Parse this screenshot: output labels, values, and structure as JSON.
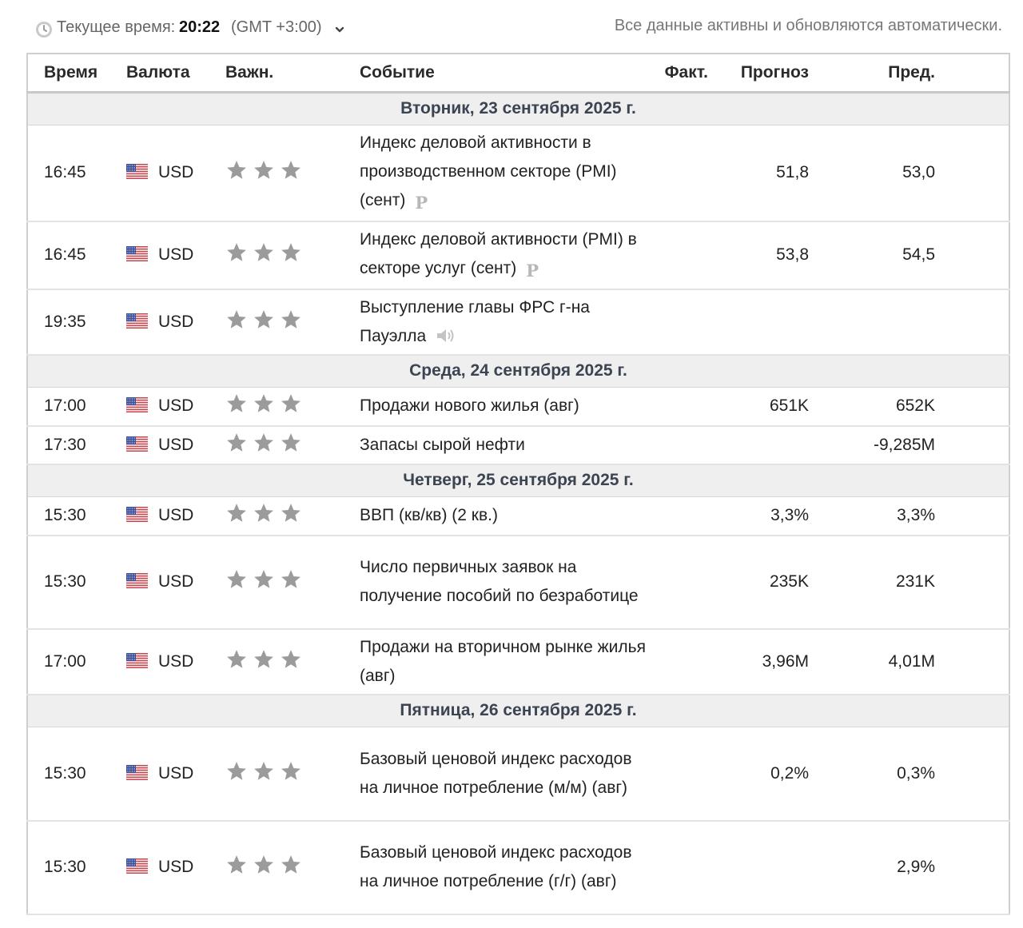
{
  "header": {
    "current_time_label": "Текущее время:",
    "current_time": "20:22",
    "timezone": "(GMT +3:00)",
    "auto_update_note": "Все данные активны и обновляются автоматически."
  },
  "table": {
    "columns": {
      "time": "Время",
      "currency": "Валюта",
      "importance": "Важн.",
      "event": "Событие",
      "actual": "Факт.",
      "forecast": "Прогноз",
      "previous": "Пред."
    },
    "days": [
      {
        "date": "Вторник, 23 сентября 2025 г.",
        "events": [
          {
            "time": "16:45",
            "currency": "USD",
            "stars": 3,
            "name": "Индекс деловой активности в производственном секторе (PMI) (сент)",
            "icon": "preliminary-icon",
            "icon_text": "P",
            "actual": "",
            "forecast": "51,8",
            "previous": "53,0"
          },
          {
            "time": "16:45",
            "currency": "USD",
            "stars": 3,
            "name": "Индекс деловой активности (PMI) в секторе услуг (сент)",
            "icon": "preliminary-icon",
            "icon_text": "P",
            "actual": "",
            "forecast": "53,8",
            "previous": "54,5"
          },
          {
            "time": "19:35",
            "currency": "USD",
            "stars": 3,
            "name": "Выступление главы ФРС г-на Пауэлла",
            "icon": "speech-icon",
            "actual": "",
            "forecast": "",
            "previous": ""
          }
        ]
      },
      {
        "date": "Среда, 24 сентября 2025 г.",
        "events": [
          {
            "time": "17:00",
            "currency": "USD",
            "stars": 3,
            "name": "Продажи нового жилья (авг)",
            "actual": "",
            "forecast": "651K",
            "previous": "652K"
          },
          {
            "time": "17:30",
            "currency": "USD",
            "stars": 3,
            "name": "Запасы сырой нефти",
            "actual": "",
            "forecast": "",
            "previous": "-9,285M"
          }
        ]
      },
      {
        "date": "Четверг, 25 сентября 2025 г.",
        "events": [
          {
            "time": "15:30",
            "currency": "USD",
            "stars": 3,
            "name": "ВВП (кв/кв) (2 кв.)",
            "actual": "",
            "forecast": "3,3%",
            "previous": "3,3%"
          },
          {
            "time": "15:30",
            "currency": "USD",
            "stars": 3,
            "name": "Число первичных заявок на получение пособий по безработице",
            "actual": "",
            "forecast": "235K",
            "previous": "231K"
          },
          {
            "time": "17:00",
            "currency": "USD",
            "stars": 3,
            "name": "Продажи на вторичном рынке жилья (авг)",
            "actual": "",
            "forecast": "3,96M",
            "previous": "4,01M"
          }
        ]
      },
      {
        "date": "Пятница, 26 сентября 2025 г.",
        "events": [
          {
            "time": "15:30",
            "currency": "USD",
            "stars": 3,
            "name": "Базовый ценовой индекс расходов на личное потребление (м/м) (авг)",
            "actual": "",
            "forecast": "0,2%",
            "previous": "0,3%"
          },
          {
            "time": "15:30",
            "currency": "USD",
            "stars": 3,
            "name": "Базовый ценовой индекс расходов на личное потребление (г/г) (авг)",
            "actual": "",
            "forecast": "",
            "previous": "2,9%"
          }
        ]
      }
    ]
  },
  "colors": {
    "star": "#9b9b9b",
    "day_row_bg": "#efefef",
    "border": "#cfcfcf"
  }
}
